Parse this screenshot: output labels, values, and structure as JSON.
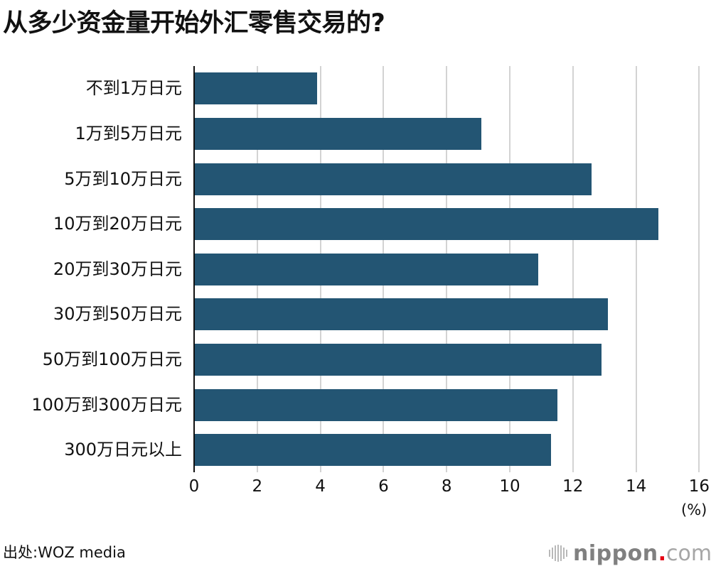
{
  "title": "从多少资金量开始外汇零售交易的?",
  "source": "出处:WOZ media",
  "logo": {
    "main": "nippon",
    "dot": ".",
    "tld": "com",
    "icon": "sound-bars-icon"
  },
  "colors": {
    "bar": "#235573",
    "grid": "#d3d3d3",
    "axis": "#111111",
    "logo_dot": "#e60012"
  },
  "axis": {
    "ticks": [
      "0",
      "2",
      "4",
      "6",
      "8",
      "10",
      "12",
      "14",
      "16"
    ],
    "unit": "(%)"
  },
  "chart_data": {
    "type": "bar",
    "orientation": "horizontal",
    "title": "从多少资金量开始外汇零售交易的?",
    "xlabel": "(%)",
    "ylabel": "",
    "xlim": [
      0,
      16
    ],
    "xticks": [
      0,
      2,
      4,
      6,
      8,
      10,
      12,
      14,
      16
    ],
    "grid": true,
    "legend": null,
    "categories": [
      "不到1万日元",
      "1万到5万日元",
      "5万到10万日元",
      "10万到20万日元",
      "20万到30万日元",
      "30万到50万日元",
      "50万到100万日元",
      "100万到300万日元",
      "300万日元以上"
    ],
    "values": [
      3.9,
      9.1,
      12.6,
      14.7,
      10.9,
      13.1,
      12.9,
      11.5,
      11.3
    ],
    "source": "出处:WOZ media"
  }
}
